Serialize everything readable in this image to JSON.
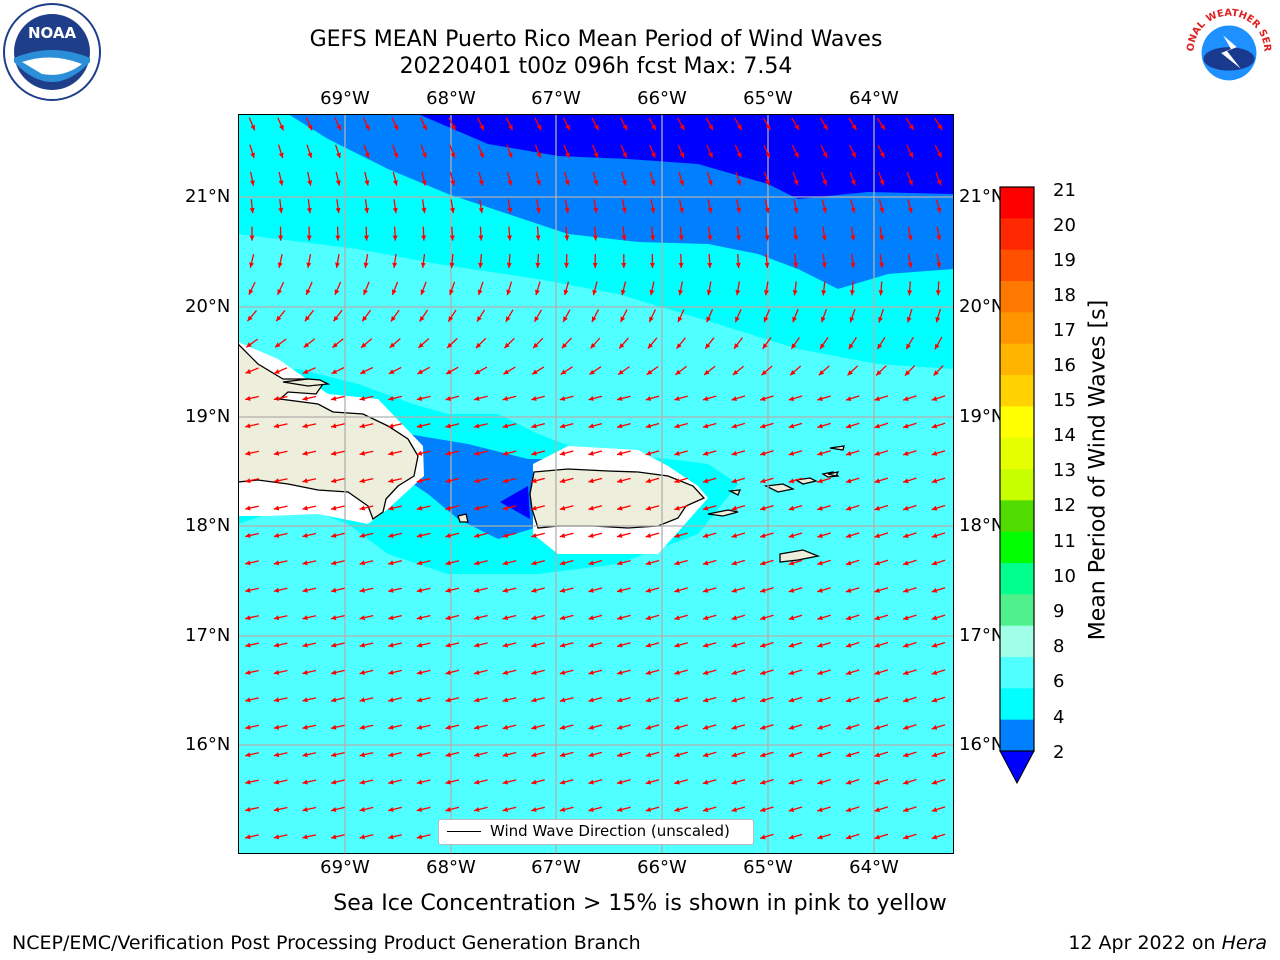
{
  "title": {
    "line1": "GEFS MEAN Puerto Rico Mean Period of Wind Waves",
    "line2": "20220401 t00z 096h fcst   Max: 7.54"
  },
  "map": {
    "lon_labels": [
      "69°W",
      "68°W",
      "67°W",
      "66°W",
      "65°W",
      "64°W"
    ],
    "lat_labels": [
      "21°N",
      "20°N",
      "19°N",
      "18°N",
      "17°N",
      "16°N"
    ],
    "land_color": "#eeeedc",
    "vector_color": "#ff0000",
    "grid_color": "#b0b0b0"
  },
  "colorbar": {
    "label": "Mean Period of Wind Waves [s]",
    "ticks": [
      "21",
      "20",
      "19",
      "18",
      "17",
      "16",
      "15",
      "14",
      "13",
      "12",
      "11",
      "10",
      "9",
      "8",
      "6",
      "4",
      "2"
    ],
    "colors": [
      "#ff0000",
      "#ff2800",
      "#ff5000",
      "#ff7800",
      "#ff9600",
      "#ffb400",
      "#ffd200",
      "#ffff00",
      "#e6ff00",
      "#c8ff00",
      "#50dc00",
      "#00ff00",
      "#00ff8c",
      "#50f08c",
      "#a0ffe6",
      "#50ffff",
      "#00ffff",
      "#0080ff"
    ],
    "extend_color": "#0000ff"
  },
  "legend": {
    "label": "Wind Wave Direction (unscaled)"
  },
  "notes": {
    "sea_ice": "Sea Ice Concentration > 15% is shown in pink to yellow"
  },
  "footer": {
    "left": "NCEP/EMC/Verification Post Processing Product Generation Branch",
    "right_date": "12 Apr 2022 on",
    "right_host": "Hera"
  },
  "logos": {
    "noaa_text": "NOAA",
    "nws_text": "NATIONAL WEATHER SERVICE"
  }
}
